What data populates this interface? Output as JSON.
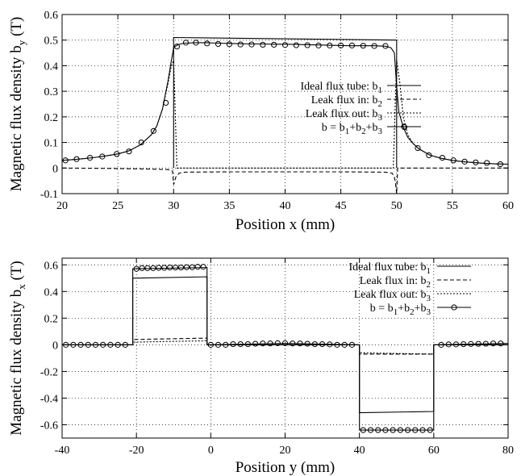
{
  "chart_data": [
    {
      "type": "line",
      "title": "",
      "xlabel": "Position x (mm)",
      "ylabel_main": "Magnetic flux density b",
      "ylabel_sub": "y",
      "ylabel_unit": " (T)",
      "xlim": [
        20,
        60
      ],
      "ylim": [
        -0.1,
        0.6
      ],
      "xticks": [
        20,
        25,
        30,
        35,
        40,
        45,
        50,
        55,
        60
      ],
      "xtick_labels": [
        "20",
        "25",
        "30",
        "35",
        "40",
        "45",
        "50",
        "55",
        "60"
      ],
      "yticks": [
        -0.1,
        0,
        0.1,
        0.2,
        0.3,
        0.4,
        0.5,
        0.6
      ],
      "ytick_labels": [
        "-0.1",
        "0",
        "0.1",
        "0.2",
        "0.3",
        "0.4",
        "0.5",
        "0.6"
      ],
      "grid": true,
      "legend_position": "center",
      "series": [
        {
          "legend": "Ideal flux tube: b",
          "sub": "1",
          "style": "solid",
          "marker": false,
          "x": [
            30,
            30,
            50,
            50
          ],
          "y": [
            0,
            0.51,
            0.5,
            0
          ]
        },
        {
          "legend": "Leak flux in: b",
          "sub": "2",
          "style": "dashed",
          "marker": false,
          "x": [
            20,
            25,
            28,
            29.5,
            29.9,
            30.0,
            30.2,
            30.5,
            31,
            35,
            40,
            45,
            49,
            49.6,
            49.8,
            49.9,
            50.0,
            50.1,
            50.5,
            55,
            60
          ],
          "y": [
            0,
            -0.002,
            -0.004,
            -0.006,
            -0.012,
            -0.065,
            -0.035,
            -0.02,
            -0.016,
            -0.015,
            -0.015,
            -0.015,
            -0.016,
            -0.02,
            -0.035,
            -0.06,
            -0.1,
            0,
            0,
            0,
            0
          ]
        },
        {
          "legend": "Leak flux out: b",
          "sub": "3",
          "style": "dotted",
          "marker": false,
          "x": [
            20,
            21,
            22,
            23,
            24,
            25,
            26,
            27,
            28,
            28.5,
            29,
            29.5,
            29.8,
            30.0,
            30.3,
            49.7,
            50.0,
            50.3,
            50.6,
            51,
            51.5,
            52,
            53,
            54,
            55,
            56,
            57,
            58,
            59,
            60
          ],
          "y": [
            0.03,
            0.033,
            0.037,
            0.042,
            0.048,
            0.055,
            0.067,
            0.09,
            0.13,
            0.165,
            0.23,
            0.33,
            0.4,
            0.42,
            0,
            0,
            0.42,
            0.33,
            0.2,
            0.13,
            0.095,
            0.075,
            0.05,
            0.038,
            0.03,
            0.025,
            0.021,
            0.018,
            0.016,
            0.015
          ]
        },
        {
          "legend": "b = b",
          "legend_parts": [
            "1",
            "+b",
            "2",
            "+b",
            "3"
          ],
          "style": "solid",
          "marker": true,
          "x": [
            20,
            21,
            22,
            23,
            24,
            25,
            26,
            27,
            28,
            28.5,
            29,
            29.5,
            29.8,
            30.0,
            30.3,
            30.6,
            31,
            32,
            33,
            34,
            35,
            36,
            37,
            38,
            39,
            40,
            41,
            42,
            43,
            44,
            45,
            46,
            47,
            48,
            49,
            49.5,
            49.8,
            50.0,
            50.2,
            50.6,
            51,
            51.5,
            52,
            53,
            54,
            55,
            56,
            57,
            58,
            59,
            60
          ],
          "y": [
            0.03,
            0.033,
            0.037,
            0.042,
            0.048,
            0.055,
            0.067,
            0.09,
            0.13,
            0.165,
            0.23,
            0.34,
            0.42,
            0.47,
            0.48,
            0.485,
            0.488,
            0.49,
            0.49,
            0.488,
            0.487,
            0.486,
            0.485,
            0.485,
            0.484,
            0.484,
            0.483,
            0.482,
            0.481,
            0.48,
            0.479,
            0.478,
            0.478,
            0.478,
            0.476,
            0.47,
            0.45,
            0.32,
            0.22,
            0.16,
            0.12,
            0.095,
            0.075,
            0.05,
            0.038,
            0.03,
            0.025,
            0.021,
            0.018,
            0.016,
            0.015
          ],
          "marker_x": [
            20.3,
            21.3,
            22.5,
            23.6,
            24.9,
            26,
            27.1,
            28.2,
            29.3,
            30.3,
            31.1,
            32,
            33,
            34,
            35,
            36,
            37,
            38,
            39,
            40,
            41,
            42,
            43,
            44,
            45,
            46,
            47,
            48,
            49,
            50.7,
            51.9,
            52.9,
            54.1,
            55.1,
            56.1,
            57.1,
            58.1,
            59.3
          ],
          "marker_y": [
            0.03,
            0.035,
            0.04,
            0.045,
            0.055,
            0.065,
            0.1,
            0.145,
            0.255,
            0.475,
            0.49,
            0.49,
            0.487,
            0.485,
            0.484,
            0.483,
            0.483,
            0.482,
            0.482,
            0.481,
            0.48,
            0.48,
            0.479,
            0.479,
            0.479,
            0.479,
            0.478,
            0.477,
            0.477,
            0.16,
            0.078,
            0.05,
            0.04,
            0.03,
            0.025,
            0.022,
            0.02,
            0.015
          ]
        }
      ]
    },
    {
      "type": "line",
      "title": "",
      "xlabel": "Position y (mm)",
      "ylabel_main": "Magnetic flux density b",
      "ylabel_sub": "x",
      "ylabel_unit": " (T)",
      "xlim": [
        -40,
        80
      ],
      "ylim": [
        -0.7,
        0.65
      ],
      "xticks": [
        -40,
        -20,
        0,
        20,
        40,
        60,
        80
      ],
      "xtick_labels": [
        "-40",
        "-20",
        "0",
        "20",
        "40",
        "60",
        "80"
      ],
      "yticks": [
        -0.6,
        -0.4,
        -0.2,
        0,
        0.2,
        0.4,
        0.6
      ],
      "ytick_labels": [
        "-0.6",
        "-0.4",
        "-0.2",
        "0",
        "0.2",
        "0.4",
        "0.6"
      ],
      "grid": true,
      "legend_position": "top-right",
      "series": [
        {
          "legend": "Ideal flux tube: b",
          "sub": "1",
          "style": "solid",
          "marker": false,
          "x": [
            -40,
            -21,
            -21,
            -1,
            -1,
            40,
            40,
            60,
            60,
            80
          ],
          "y": [
            0,
            0,
            0.5,
            0.51,
            0,
            0,
            -0.51,
            -0.5,
            0,
            0
          ]
        },
        {
          "legend": "Leak flux in: b",
          "sub": "2",
          "style": "dashed",
          "marker": false,
          "x": [
            -40,
            -21,
            -21,
            -1,
            -1,
            40,
            40,
            60,
            60,
            80
          ],
          "y": [
            0,
            0,
            0.04,
            0.05,
            0,
            0,
            -0.07,
            -0.07,
            0,
            0
          ]
        },
        {
          "legend": "Leak flux out: b",
          "sub": "3",
          "style": "dotted",
          "marker": false,
          "x": [
            -40,
            -21,
            -21,
            -1,
            -1,
            40,
            40,
            60,
            60,
            80
          ],
          "y": [
            0,
            0,
            0.02,
            0.03,
            0,
            0,
            -0.06,
            -0.07,
            0,
            0
          ]
        },
        {
          "legend": "b = b",
          "legend_parts": [
            "1",
            "+b",
            "2",
            "+b",
            "3"
          ],
          "style": "solid",
          "marker": true,
          "x": [
            -40,
            -21,
            -21,
            -1,
            -1,
            0,
            10,
            20,
            30,
            40,
            40,
            60,
            60,
            80
          ],
          "y": [
            0,
            0,
            0.57,
            0.58,
            0,
            0,
            0.005,
            0.01,
            0.005,
            0,
            -0.64,
            -0.64,
            0,
            0.01
          ],
          "marker_x": [
            -39,
            -37,
            -35,
            -33,
            -31,
            -29,
            -27,
            -25,
            -23,
            -20,
            -18.5,
            -17,
            -15.5,
            -14,
            -12.5,
            -11,
            -9.5,
            -8,
            -6.5,
            -5,
            -3.5,
            -2,
            0,
            2,
            4,
            6,
            8,
            10,
            12,
            14,
            16,
            18,
            20,
            22,
            24,
            26,
            28,
            30,
            32,
            34,
            36,
            38,
            41,
            43,
            45,
            47,
            49,
            51,
            53,
            55,
            57,
            59,
            62,
            64,
            66,
            68,
            70,
            72,
            74,
            76,
            78
          ],
          "marker_y": [
            0,
            0,
            0,
            0,
            0,
            0,
            0,
            0,
            0,
            0.57,
            0.575,
            0.575,
            0.575,
            0.578,
            0.578,
            0.58,
            0.58,
            0.58,
            0.582,
            0.582,
            0.585,
            0.585,
            0,
            0,
            0,
            0.005,
            0.005,
            0.005,
            0.008,
            0.01,
            0.01,
            0.012,
            0.012,
            0.01,
            0.01,
            0.008,
            0.005,
            0.005,
            0.003,
            0,
            0,
            0,
            -0.64,
            -0.64,
            -0.64,
            -0.64,
            -0.64,
            -0.64,
            -0.64,
            -0.64,
            -0.64,
            -0.64,
            0,
            0.003,
            0.003,
            0.005,
            0.006,
            0.007,
            0.008,
            0.01,
            0.01
          ]
        }
      ]
    }
  ]
}
